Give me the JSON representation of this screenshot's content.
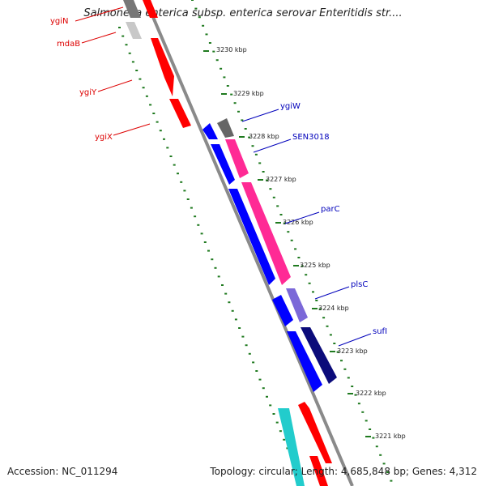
{
  "title": "Salmonella enterica subsp. enterica serovar Enteritidis str....",
  "footer": {
    "accession": "Accession: NC_011294",
    "summary": "Topology: circular; Length: 4,685,848 bp; Genes: 4,312"
  },
  "colors": {
    "backbone": "#8a8a8a",
    "tick": "#1f7a1f",
    "minus_label": "#dd0000",
    "plus_label": "#0000bb",
    "red": "#ff0000",
    "blue": "#0000ff",
    "pink": "#ff2a95",
    "violet": "#7b68d8",
    "navy": "#0b0b7a",
    "gray": "#666666",
    "lightgray": "#c8c8c8",
    "cyan": "#22cccc"
  },
  "kbp_ticks": [
    "3230 kbp",
    "3229 kbp",
    "3228 kbp",
    "3227 kbp",
    "3226 kbp",
    "3225 kbp",
    "3224 kbp",
    "3223 kbp",
    "3222 kbp",
    "3221 kbp"
  ],
  "genes_left": [
    "ygiN",
    "mdaB",
    "ygiY",
    "ygiX"
  ],
  "genes_right": [
    "ygiW",
    "SEN3018",
    "parC",
    "plsC",
    "sufI"
  ]
}
